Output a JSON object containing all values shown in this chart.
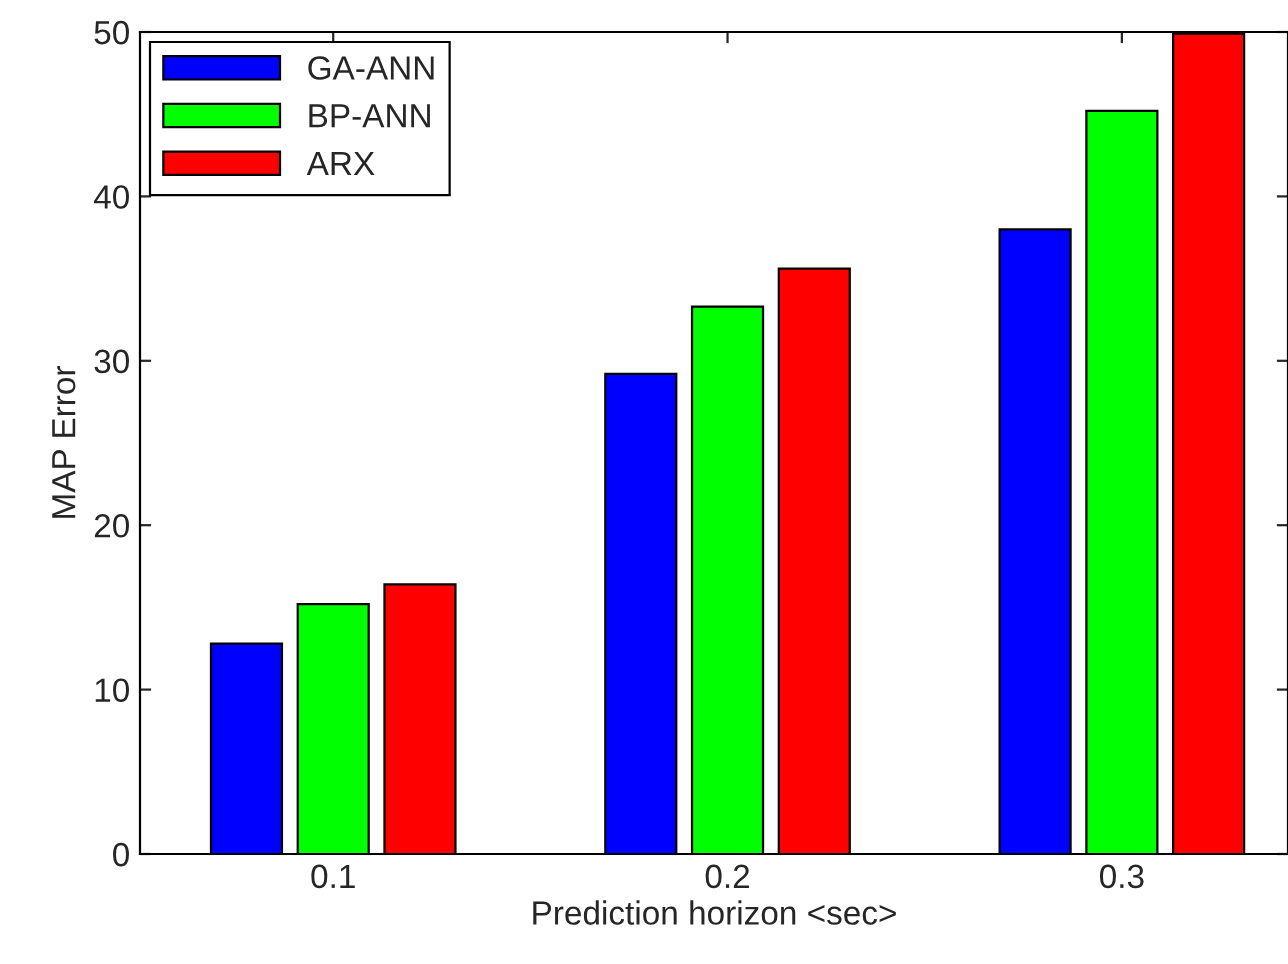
{
  "chart_data": {
    "type": "bar",
    "xlabel": "Prediction horizon <sec>",
    "ylabel": "MAP Error",
    "categories": [
      "0.1",
      "0.2",
      "0.3"
    ],
    "series": [
      {
        "name": "GA-ANN",
        "color": "#0000ff",
        "values": [
          12.8,
          29.2,
          38.0
        ]
      },
      {
        "name": "BP-ANN",
        "color": "#00ff00",
        "values": [
          15.2,
          33.3,
          45.2
        ]
      },
      {
        "name": "ARX",
        "color": "#ff0000",
        "values": [
          16.4,
          35.6,
          49.9
        ]
      }
    ],
    "ylim": [
      0,
      50
    ],
    "yticks": [
      0,
      10,
      20,
      30,
      40,
      50
    ],
    "grid": false,
    "legend": "top left"
  }
}
